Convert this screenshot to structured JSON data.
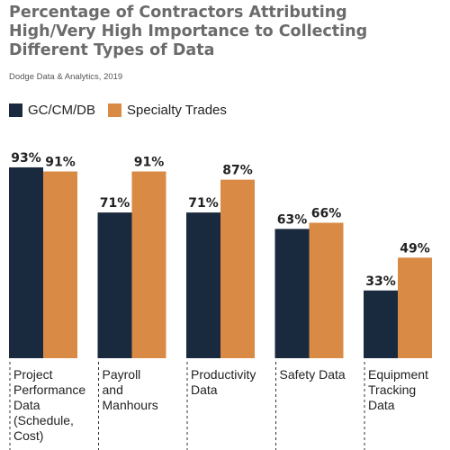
{
  "header": {
    "title_lines": [
      "Percentage of Contractors Attributing",
      "High/Very High Importance to Collecting",
      "Different Types of Data"
    ],
    "source": "Dodge Data & Analytics, 2019"
  },
  "colors": {
    "gc": "#1a2a3e",
    "specialty": "#d98a45",
    "title": "#6b6b6b"
  },
  "chart_data": {
    "type": "bar",
    "title": "Percentage of Contractors Attributing High/Very High Importance to Collecting Different Types of Data",
    "categories": [
      "Project\nPerformance\nData\n(Schedule,\nCost)",
      "Payroll\nand\nManhours",
      "Productivity\nData",
      "Safety Data",
      "Equipment\nTracking\nData"
    ],
    "series": [
      {
        "name": "GC/CM/DB",
        "values": [
          93,
          71,
          71,
          63,
          33
        ],
        "labels": [
          "93%",
          "71%",
          "71%",
          "63%",
          "33%"
        ]
      },
      {
        "name": "Specialty Trades",
        "values": [
          91,
          91,
          87,
          66,
          49
        ],
        "labels": [
          "91%",
          "91%",
          "87%",
          "66%",
          "49%"
        ]
      }
    ],
    "ylim": [
      0,
      100
    ],
    "grid": false,
    "legend_position": "top-left"
  }
}
